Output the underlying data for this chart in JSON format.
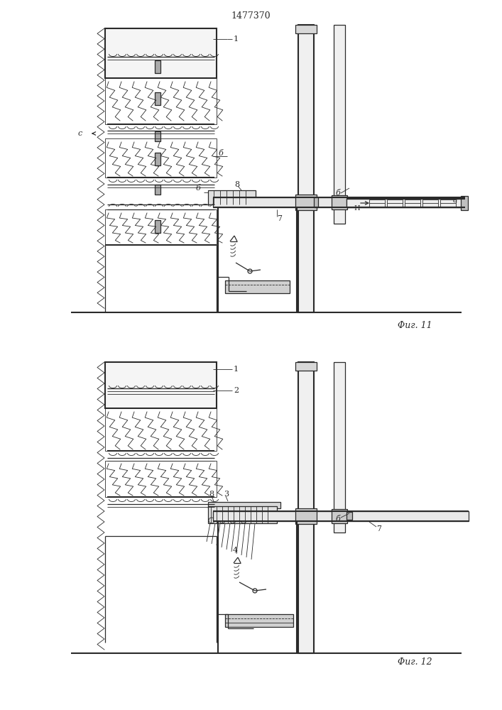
{
  "title": "1477370",
  "fig11_label": "Φиг. 11",
  "fig12_label": "Φиг. 12",
  "bg_color": "#ffffff",
  "line_color": "#2a2a2a"
}
